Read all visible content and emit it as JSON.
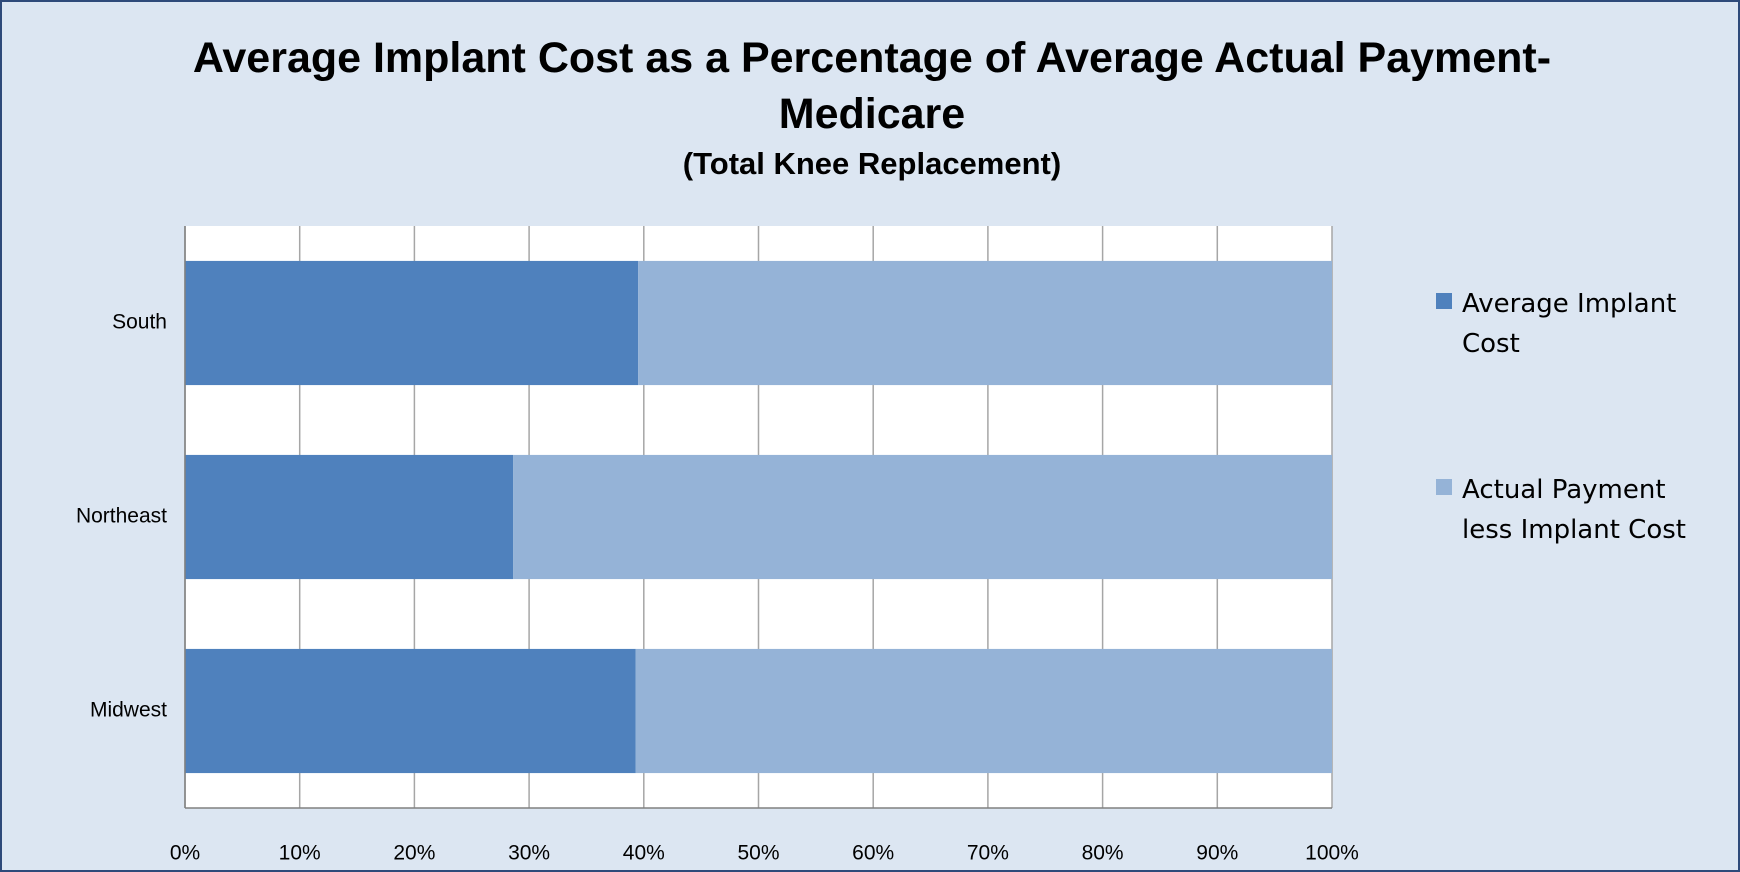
{
  "chart_data": {
    "type": "stacked_barh",
    "title": "Average Implant Cost as a Percentage of Average Actual Payment- Medicare",
    "subtitle": "(Total Knee Replacement)",
    "categories": [
      "South",
      "Northeast",
      "Midwest"
    ],
    "series": [
      {
        "name": "Average Implant Cost",
        "color": "#4f81bd",
        "values": [
          39.5,
          28.6,
          39.3
        ]
      },
      {
        "name": "Actual Payment less Implant Cost",
        "color": "#95b3d7",
        "values": [
          60.5,
          71.4,
          60.7
        ]
      }
    ],
    "xlim": [
      0,
      100
    ],
    "xticks": [
      {
        "value": 0,
        "label": "0%"
      },
      {
        "value": 10,
        "label": "10%"
      },
      {
        "value": 20,
        "label": "20%"
      },
      {
        "value": 30,
        "label": "30%"
      },
      {
        "value": 40,
        "label": "40%"
      },
      {
        "value": 50,
        "label": "50%"
      },
      {
        "value": 60,
        "label": "60%"
      },
      {
        "value": 70,
        "label": "70%"
      },
      {
        "value": 80,
        "label": "80%"
      },
      {
        "value": 90,
        "label": "90%"
      },
      {
        "value": 100,
        "label": "100%"
      }
    ],
    "grid": true,
    "legend": "right"
  }
}
